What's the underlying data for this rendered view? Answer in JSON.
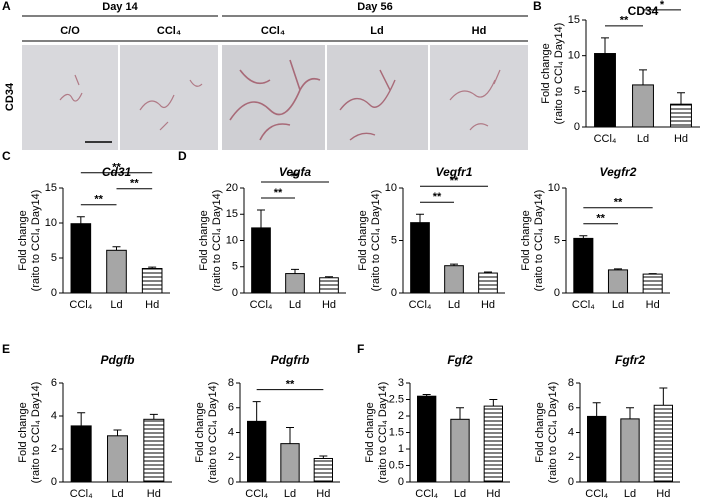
{
  "panel_labels": [
    "A",
    "B",
    "C",
    "D",
    "E",
    "F"
  ],
  "panel_a": {
    "day_headers": [
      "Day 14",
      "Day 56"
    ],
    "columns": [
      "C/O",
      "CCl₄",
      "CCl₄",
      "Ld",
      "Hd"
    ],
    "row_label": "CD34"
  },
  "chart_data": [
    {
      "type": "bar",
      "title": "CD34",
      "italic": false,
      "categories": [
        "CCl₄",
        "Ld",
        "Hd"
      ],
      "values": [
        10.3,
        5.9,
        3.2
      ],
      "errors": [
        2.2,
        2.1,
        1.6
      ],
      "colors": [
        "#000000",
        "#a6a6a6",
        "#ffffff"
      ],
      "hatch": [
        false,
        false,
        true
      ],
      "ylabel": [
        "Fold change",
        "(raito to CCl₄ Day14)"
      ],
      "ylim": [
        0,
        15
      ],
      "yticks": [
        0,
        5,
        10,
        15
      ],
      "significance": [
        {
          "pair": [
            0,
            2
          ],
          "label": "**"
        },
        {
          "pair": [
            0,
            1
          ],
          "label": "**"
        },
        {
          "pair": [
            1,
            2
          ],
          "label": "*"
        }
      ]
    },
    {
      "type": "bar",
      "title": "Cd31",
      "italic": true,
      "categories": [
        "CCl₄",
        "Ld",
        "Hd"
      ],
      "values": [
        9.9,
        6.1,
        3.5
      ],
      "errors": [
        1.0,
        0.5,
        0.2
      ],
      "colors": [
        "#000000",
        "#a6a6a6",
        "#ffffff"
      ],
      "hatch": [
        false,
        false,
        true
      ],
      "ylabel": [
        "Fold change",
        "(raito to CCl₄ Day14)"
      ],
      "ylim": [
        0,
        15
      ],
      "yticks": [
        0,
        5,
        10,
        15
      ],
      "significance": [
        {
          "pair": [
            0,
            2
          ],
          "label": "**"
        },
        {
          "pair": [
            0,
            1
          ],
          "label": "**"
        },
        {
          "pair": [
            1,
            2
          ],
          "label": "**"
        }
      ]
    },
    {
      "type": "bar",
      "title": "Vegfa",
      "italic": true,
      "categories": [
        "CCl₄",
        "Ld",
        "Hd"
      ],
      "values": [
        12.4,
        3.7,
        2.9
      ],
      "errors": [
        3.4,
        0.8,
        0.2
      ],
      "colors": [
        "#000000",
        "#a6a6a6",
        "#ffffff"
      ],
      "hatch": [
        false,
        false,
        true
      ],
      "ylabel": [
        "Fold change",
        "(raito to CCl₄ Day14)"
      ],
      "ylim": [
        0,
        20
      ],
      "yticks": [
        0,
        5,
        10,
        15,
        20
      ],
      "significance": [
        {
          "pair": [
            0,
            1
          ],
          "label": "**"
        },
        {
          "pair": [
            0,
            2
          ],
          "label": "**"
        }
      ]
    },
    {
      "type": "bar",
      "title": "Vegfr1",
      "italic": true,
      "categories": [
        "CCl₄",
        "Ld",
        "Hd"
      ],
      "values": [
        6.7,
        2.6,
        1.9
      ],
      "errors": [
        0.8,
        0.15,
        0.1
      ],
      "colors": [
        "#000000",
        "#a6a6a6",
        "#ffffff"
      ],
      "hatch": [
        false,
        false,
        true
      ],
      "ylabel": [
        "Fold change",
        "(raito to CCl₄ Day14)"
      ],
      "ylim": [
        0,
        10
      ],
      "yticks": [
        0,
        5,
        10
      ],
      "significance": [
        {
          "pair": [
            0,
            1
          ],
          "label": "**"
        },
        {
          "pair": [
            0,
            2
          ],
          "label": "**"
        }
      ]
    },
    {
      "type": "bar",
      "title": "Vegfr2",
      "italic": true,
      "categories": [
        "CCl₄",
        "Ld",
        "Hd"
      ],
      "values": [
        5.2,
        2.2,
        1.8
      ],
      "errors": [
        0.25,
        0.1,
        0.05
      ],
      "colors": [
        "#000000",
        "#a6a6a6",
        "#ffffff"
      ],
      "hatch": [
        false,
        false,
        true
      ],
      "ylabel": [
        "Fold change",
        "(raito to CCl₄ Day14)"
      ],
      "ylim": [
        0,
        10
      ],
      "yticks": [
        0,
        5,
        10
      ],
      "significance": [
        {
          "pair": [
            0,
            1
          ],
          "label": "**"
        },
        {
          "pair": [
            0,
            2
          ],
          "label": "**"
        }
      ]
    },
    {
      "type": "bar",
      "title": "Pdgfb",
      "italic": true,
      "categories": [
        "CCl₄",
        "Ld",
        "Hd"
      ],
      "values": [
        3.4,
        2.8,
        3.8
      ],
      "errors": [
        0.8,
        0.35,
        0.3
      ],
      "colors": [
        "#000000",
        "#a6a6a6",
        "#ffffff"
      ],
      "hatch": [
        false,
        false,
        true
      ],
      "ylabel": [
        "Fold change",
        "(raito to CCl₄ Day14)"
      ],
      "ylim": [
        0,
        6
      ],
      "yticks": [
        0,
        2,
        4,
        6
      ],
      "significance": []
    },
    {
      "type": "bar",
      "title": "Pdgfrb",
      "italic": true,
      "categories": [
        "CCl₄",
        "Ld",
        "Hd"
      ],
      "values": [
        4.9,
        3.1,
        1.9
      ],
      "errors": [
        1.6,
        1.3,
        0.2
      ],
      "colors": [
        "#000000",
        "#a6a6a6",
        "#ffffff"
      ],
      "hatch": [
        false,
        false,
        true
      ],
      "ylabel": [
        "Fold change",
        "(raito to CCl₄ Day14)"
      ],
      "ylim": [
        0,
        8
      ],
      "yticks": [
        0,
        2,
        4,
        6,
        8
      ],
      "significance": [
        {
          "pair": [
            0,
            2
          ],
          "label": "**"
        }
      ]
    },
    {
      "type": "bar",
      "title": "Fgf2",
      "italic": true,
      "categories": [
        "CCl₄",
        "Ld",
        "Hd"
      ],
      "values": [
        2.6,
        1.9,
        2.3
      ],
      "errors": [
        0.05,
        0.35,
        0.2
      ],
      "colors": [
        "#000000",
        "#a6a6a6",
        "#ffffff"
      ],
      "hatch": [
        false,
        false,
        true
      ],
      "ylabel": [
        "Fold change",
        "(raito to CCl₄ Day14)"
      ],
      "ylim": [
        0,
        3
      ],
      "yticks": [
        0,
        0.5,
        1,
        1.5,
        2,
        2.5,
        3
      ],
      "significance": []
    },
    {
      "type": "bar",
      "title": "Fgfr2",
      "italic": true,
      "categories": [
        "CCl₄",
        "Ld",
        "Hd"
      ],
      "values": [
        5.3,
        5.1,
        6.2
      ],
      "errors": [
        1.1,
        0.9,
        1.4
      ],
      "colors": [
        "#000000",
        "#a6a6a6",
        "#ffffff"
      ],
      "hatch": [
        false,
        false,
        true
      ],
      "ylabel": [
        "Fold change",
        "(raito to CCl₄ Day14)"
      ],
      "ylim": [
        0,
        8
      ],
      "yticks": [
        0,
        2,
        4,
        6,
        8
      ],
      "significance": []
    }
  ]
}
